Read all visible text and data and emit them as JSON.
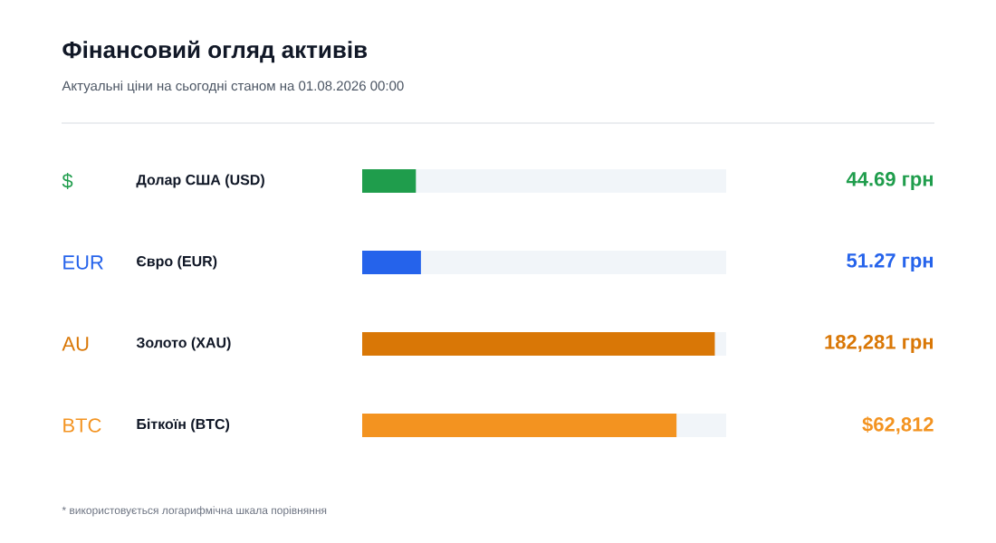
{
  "chart_data": {
    "type": "bar",
    "orientation": "horizontal",
    "log": "x",
    "xlim": [
      10,
      250000
    ],
    "title": "Фінансовий огляд активів",
    "subtitle": "Актуальні ціни на сьогодні станом на 01.08.2026 00:00",
    "categories": [
      "Долар США (USD)",
      "Євро (EUR)",
      "Золото (XAU)",
      "Біткоїн (BTC)"
    ],
    "values": [
      44.69,
      51.27,
      182281,
      62812
    ],
    "colors": [
      "#1f9d4c",
      "#2563eb",
      "#d97706",
      "#f39320"
    ],
    "value_labels": [
      "44.69 грн",
      "51.27 грн",
      "182,281 грн",
      "$62,812"
    ],
    "annotations": [
      "$",
      "EUR",
      "AU",
      "BTC",
      "* використовується логарифмічна шкала порівняння"
    ]
  }
}
